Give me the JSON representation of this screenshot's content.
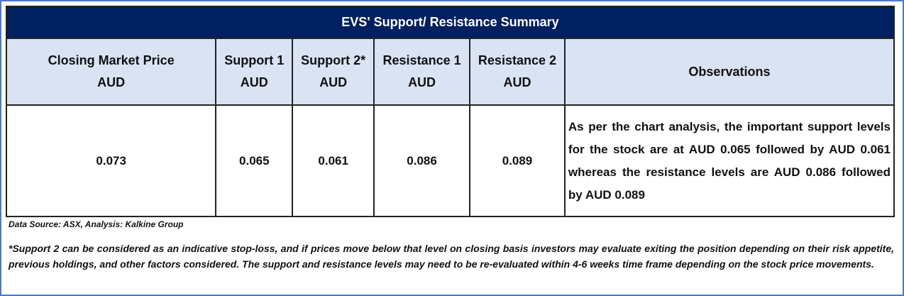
{
  "title": "EVS' Support/  Resistance Summary",
  "columns": [
    {
      "line1": "Closing Market Price",
      "line2": "AUD"
    },
    {
      "line1": "Support 1",
      "line2": "AUD"
    },
    {
      "line1": "Support 2*",
      "line2": "AUD"
    },
    {
      "line1": "Resistance 1",
      "line2": "AUD"
    },
    {
      "line1": "Resistance 2",
      "line2": "AUD"
    },
    {
      "line1": "Observations",
      "line2": ""
    }
  ],
  "row": {
    "closing_price": "0.073",
    "support1": "0.065",
    "support2": "0.061",
    "resistance1": "0.086",
    "resistance2": "0.089",
    "observations": "As per the chart analysis, the important support levels for the stock are at AUD 0.065 followed by AUD 0.061 whereas the resistance levels are AUD 0.086 followed by AUD 0.089"
  },
  "source": "Data Source: ASX, Analysis: Kalkine Group",
  "footnote": "*Support 2 can be considered as an indicative stop-loss, and if prices move below that level on closing basis investors may evaluate exiting the position depending on their risk appetite, previous holdings, and other factors considered. The support and resistance levels may need to be re-evaluated within 4-6 weeks time frame depending on the stock price movements.",
  "colors": {
    "title_bg": "#002060",
    "header_bg": "#dae3f3",
    "frame": "#4a78c8"
  }
}
